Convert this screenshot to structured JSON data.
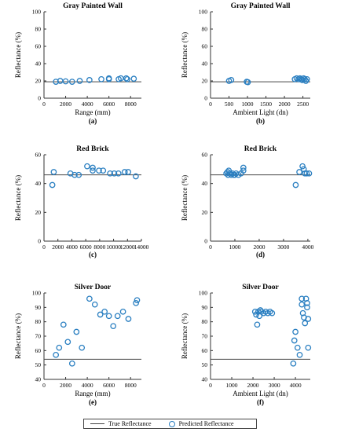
{
  "legend": {
    "true_label": "True Reflectance",
    "pred_label": "Predicted Reflectance"
  },
  "colors": {
    "marker": "#2a7fc1",
    "line": "#444444",
    "axis": "#333333"
  },
  "chart_data": [
    {
      "type": "scatter",
      "panel": "(a)",
      "title": "Gray Painted Wall",
      "xlabel": "Range (mm)",
      "ylabel": "Reflectance (%)",
      "xlim": [
        0,
        9000
      ],
      "ylim": [
        0,
        100
      ],
      "xticks": [
        2000,
        4000,
        6000,
        8000
      ],
      "yticks": [
        0,
        20,
        40,
        60,
        80,
        100
      ],
      "true_reflectance": 19,
      "points": [
        [
          1100,
          19
        ],
        [
          1500,
          20
        ],
        [
          2000,
          19.5
        ],
        [
          2600,
          19
        ],
        [
          3300,
          20
        ],
        [
          4200,
          21
        ],
        [
          5300,
          22
        ],
        [
          6000,
          22
        ],
        [
          6000,
          23
        ],
        [
          6900,
          22
        ],
        [
          7100,
          23
        ],
        [
          7600,
          23
        ],
        [
          7700,
          22
        ],
        [
          8300,
          22.5
        ]
      ]
    },
    {
      "type": "scatter",
      "panel": "(b)",
      "title": "Gray Painted Wall",
      "xlabel": "Ambient Light (dn)",
      "ylabel": "Reflectance (%)",
      "xlim": [
        0,
        2700
      ],
      "ylim": [
        0,
        100
      ],
      "xticks": [
        500,
        1000,
        1500,
        2000,
        2500
      ],
      "yticks": [
        0,
        20,
        40,
        60,
        80,
        100
      ],
      "true_reflectance": 19,
      "points": [
        [
          500,
          20
        ],
        [
          560,
          21
        ],
        [
          980,
          19
        ],
        [
          1010,
          18.5
        ],
        [
          2280,
          22
        ],
        [
          2330,
          23
        ],
        [
          2380,
          22
        ],
        [
          2420,
          23
        ],
        [
          2450,
          22
        ],
        [
          2480,
          21
        ],
        [
          2520,
          23
        ],
        [
          2550,
          22
        ],
        [
          2580,
          20
        ],
        [
          2610,
          22
        ]
      ]
    },
    {
      "type": "scatter",
      "panel": "(c)",
      "title": "Red Brick",
      "xlabel": "",
      "ylabel": "Reflectance (%)",
      "xlim": [
        0,
        14000
      ],
      "ylim": [
        0,
        60
      ],
      "xticks": [
        2000,
        4000,
        6000,
        8000,
        10000,
        12000,
        14000
      ],
      "yticks": [
        0,
        20,
        40,
        60
      ],
      "true_reflectance": 46,
      "points": [
        [
          1200,
          39
        ],
        [
          1400,
          48
        ],
        [
          3800,
          47
        ],
        [
          4400,
          46
        ],
        [
          5000,
          46
        ],
        [
          6200,
          52
        ],
        [
          7000,
          49
        ],
        [
          7000,
          51
        ],
        [
          7900,
          49
        ],
        [
          8500,
          49
        ],
        [
          9500,
          47
        ],
        [
          10100,
          47
        ],
        [
          10700,
          47
        ],
        [
          11600,
          48
        ],
        [
          12100,
          48
        ],
        [
          13200,
          45
        ]
      ]
    },
    {
      "type": "scatter",
      "panel": "(d)",
      "title": "Red Brick",
      "xlabel": "",
      "ylabel": "Reflectance (%)",
      "xlim": [
        0,
        4100
      ],
      "ylim": [
        0,
        60
      ],
      "xticks": [
        1000,
        2000,
        3000,
        4000
      ],
      "yticks": [
        0,
        20,
        40,
        60
      ],
      "true_reflectance": 46,
      "points": [
        [
          650,
          47
        ],
        [
          700,
          48
        ],
        [
          720,
          46
        ],
        [
          750,
          49
        ],
        [
          800,
          47
        ],
        [
          850,
          46
        ],
        [
          900,
          47
        ],
        [
          950,
          46
        ],
        [
          1000,
          46
        ],
        [
          1050,
          47
        ],
        [
          1150,
          46
        ],
        [
          1250,
          47
        ],
        [
          1350,
          49
        ],
        [
          1350,
          51
        ],
        [
          3500,
          39
        ],
        [
          3650,
          48
        ],
        [
          3780,
          52
        ],
        [
          3830,
          50
        ],
        [
          3880,
          47
        ],
        [
          3950,
          47
        ],
        [
          4050,
          47
        ]
      ]
    },
    {
      "type": "scatter",
      "panel": "(e)",
      "title": "Silver Door",
      "xlabel": "Range (mm)",
      "ylabel": "Reflectance (%)",
      "xlim": [
        0,
        9000
      ],
      "ylim": [
        40,
        100
      ],
      "xticks": [
        2000,
        4000,
        6000,
        8000
      ],
      "yticks": [
        40,
        50,
        60,
        70,
        80,
        90,
        100
      ],
      "true_reflectance": 54,
      "points": [
        [
          1100,
          57
        ],
        [
          1400,
          62
        ],
        [
          1800,
          78
        ],
        [
          2200,
          66
        ],
        [
          2600,
          51
        ],
        [
          3000,
          73
        ],
        [
          3500,
          62
        ],
        [
          4200,
          96
        ],
        [
          4700,
          92
        ],
        [
          5200,
          85
        ],
        [
          5600,
          87
        ],
        [
          6000,
          84
        ],
        [
          6400,
          77
        ],
        [
          6800,
          84
        ],
        [
          7300,
          87
        ],
        [
          7800,
          82
        ],
        [
          8500,
          93
        ],
        [
          8600,
          95
        ]
      ]
    },
    {
      "type": "scatter",
      "panel": "(f)",
      "title": "Silver Door",
      "xlabel": "Ambient Light (dn)",
      "ylabel": "Reflectance (%)",
      "xlim": [
        0,
        4700
      ],
      "ylim": [
        40,
        100
      ],
      "xticks": [
        1000,
        2000,
        3000,
        4000
      ],
      "yticks": [
        40,
        50,
        60,
        70,
        80,
        90,
        100
      ],
      "true_reflectance": 54,
      "points": [
        [
          2100,
          87
        ],
        [
          2150,
          85
        ],
        [
          2200,
          78
        ],
        [
          2250,
          87
        ],
        [
          2300,
          84
        ],
        [
          2350,
          88
        ],
        [
          2400,
          87
        ],
        [
          2500,
          86
        ],
        [
          2600,
          87
        ],
        [
          2700,
          86
        ],
        [
          2800,
          87
        ],
        [
          2900,
          86
        ],
        [
          3900,
          51
        ],
        [
          3950,
          67
        ],
        [
          4000,
          73
        ],
        [
          4100,
          62
        ],
        [
          4200,
          57
        ],
        [
          4300,
          96
        ],
        [
          4300,
          92
        ],
        [
          4350,
          86
        ],
        [
          4400,
          83
        ],
        [
          4450,
          79
        ],
        [
          4500,
          96
        ],
        [
          4550,
          93
        ],
        [
          4550,
          90
        ],
        [
          4600,
          82
        ],
        [
          4600,
          62
        ]
      ]
    }
  ]
}
